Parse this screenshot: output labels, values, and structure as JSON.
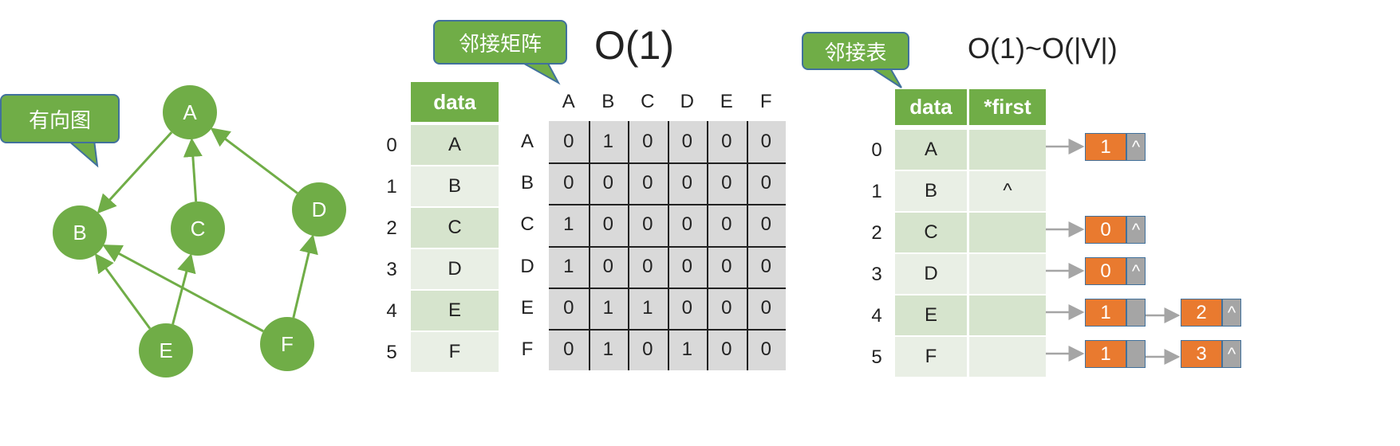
{
  "colors": {
    "green": "#70ad47",
    "orange": "#e97a2f",
    "gray": "#a5a5a5",
    "matrix_bg": "#d9d9d9"
  },
  "graph": {
    "label": "有向图",
    "nodes": [
      "A",
      "B",
      "C",
      "D",
      "E",
      "F"
    ],
    "edges": [
      [
        "A",
        "B"
      ],
      [
        "C",
        "A"
      ],
      [
        "D",
        "A"
      ],
      [
        "E",
        "B"
      ],
      [
        "E",
        "C"
      ],
      [
        "F",
        "B"
      ],
      [
        "F",
        "D"
      ]
    ]
  },
  "matrix_section": {
    "label": "邻接矩阵",
    "complexity": "O(1)",
    "data_header": "data",
    "indices": [
      "0",
      "1",
      "2",
      "3",
      "4",
      "5"
    ],
    "vertices": [
      "A",
      "B",
      "C",
      "D",
      "E",
      "F"
    ],
    "col_labels": [
      "A",
      "B",
      "C",
      "D",
      "E",
      "F"
    ],
    "row_labels": [
      "A",
      "B",
      "C",
      "D",
      "E",
      "F"
    ],
    "matrix": [
      [
        "0",
        "1",
        "0",
        "0",
        "0",
        "0"
      ],
      [
        "0",
        "0",
        "0",
        "0",
        "0",
        "0"
      ],
      [
        "1",
        "0",
        "0",
        "0",
        "0",
        "0"
      ],
      [
        "1",
        "0",
        "0",
        "0",
        "0",
        "0"
      ],
      [
        "0",
        "1",
        "1",
        "0",
        "0",
        "0"
      ],
      [
        "0",
        "1",
        "0",
        "1",
        "0",
        "0"
      ]
    ]
  },
  "list_section": {
    "label": "邻接表",
    "complexity": "O(1)~O(|V|)",
    "data_header": "data",
    "first_header": "*first",
    "indices": [
      "0",
      "1",
      "2",
      "3",
      "4",
      "5"
    ],
    "vertices": [
      "A",
      "B",
      "C",
      "D",
      "E",
      "F"
    ],
    "null_symbol": "^",
    "lists": [
      [
        "1"
      ],
      [],
      [
        "0"
      ],
      [
        "0"
      ],
      [
        "1",
        "2"
      ],
      [
        "1",
        "3"
      ]
    ]
  }
}
